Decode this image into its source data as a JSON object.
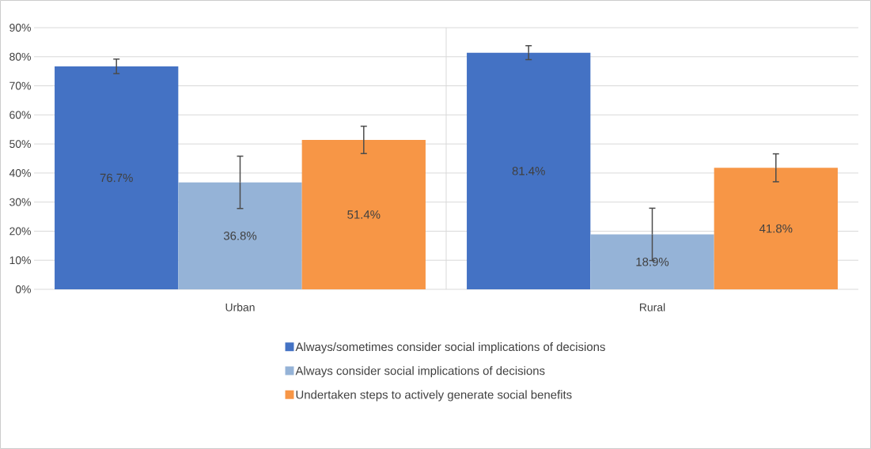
{
  "chart_data": {
    "type": "bar",
    "categories": [
      "Urban",
      "Rural"
    ],
    "series": [
      {
        "name": "Always/sometimes consider social implications of decisions",
        "color": "#4472c4",
        "values": [
          76.7,
          81.4
        ],
        "errors": [
          2.5,
          2.4
        ],
        "value_labels": [
          "76.7%",
          "81.4%"
        ]
      },
      {
        "name": "Always consider social implications of decisions",
        "color": "#95b3d7",
        "values": [
          36.8,
          18.9
        ],
        "errors": [
          9,
          9
        ],
        "value_labels": [
          "36.8%",
          "18.9%"
        ]
      },
      {
        "name": "Undertaken steps to actively generate social benefits",
        "color": "#f79646",
        "values": [
          51.4,
          41.8
        ],
        "errors": [
          4.7,
          4.8
        ],
        "value_labels": [
          "51.4%",
          "41.8%"
        ]
      }
    ],
    "ylim": [
      0,
      90
    ],
    "yticks": [
      {
        "value": 0,
        "label": "0%"
      },
      {
        "value": 10,
        "label": "10%"
      },
      {
        "value": 20,
        "label": "20%"
      },
      {
        "value": 30,
        "label": "30%"
      },
      {
        "value": 40,
        "label": "40%"
      },
      {
        "value": 50,
        "label": "50%"
      },
      {
        "value": 60,
        "label": "60%"
      },
      {
        "value": 70,
        "label": "70%"
      },
      {
        "value": 80,
        "label": "80%"
      },
      {
        "value": 90,
        "label": "90%"
      }
    ],
    "grid": "y",
    "legend": "bottom"
  }
}
